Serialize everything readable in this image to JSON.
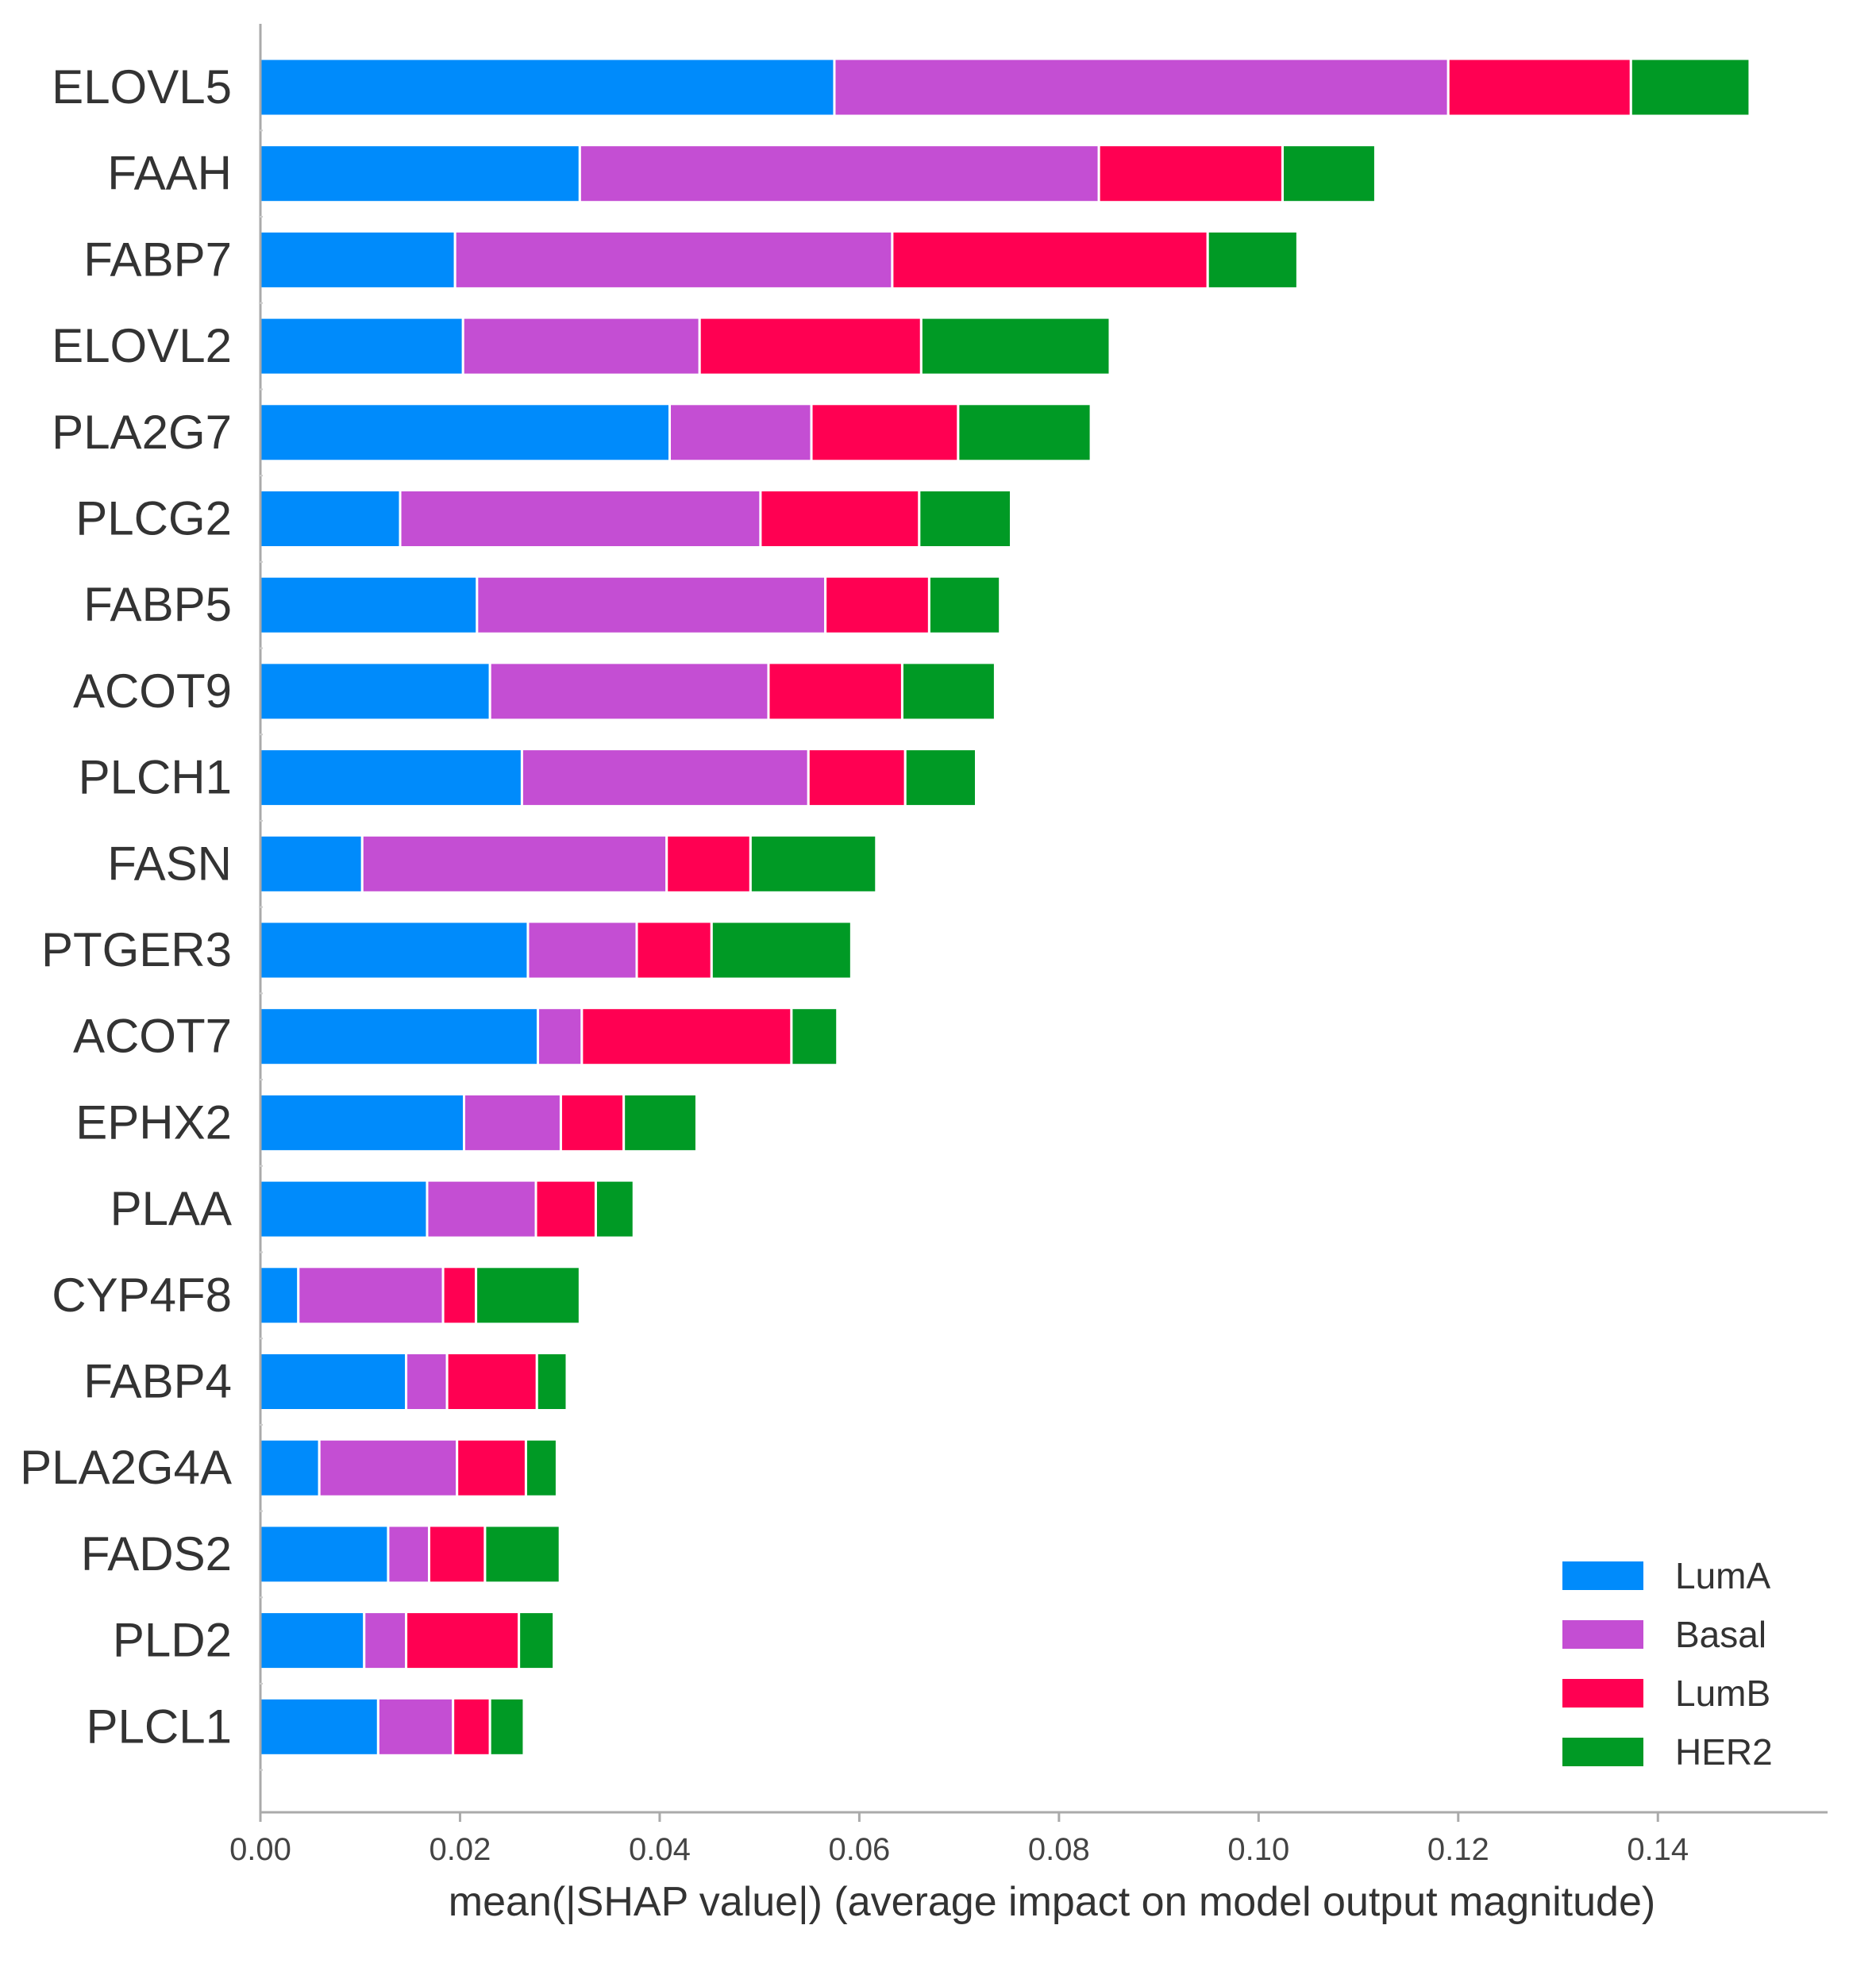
{
  "chart_data": {
    "type": "bar",
    "orientation": "horizontal",
    "stacked": true,
    "title": "",
    "xlabel": "mean(|SHAP value|) (average impact on model output magnitude)",
    "ylabel": "",
    "xlim": [
      0,
      0.157
    ],
    "xticks": [
      0.0,
      0.02,
      0.04,
      0.06,
      0.08,
      0.1,
      0.12,
      0.14
    ],
    "xtick_labels": [
      "0.00",
      "0.02",
      "0.04",
      "0.06",
      "0.08",
      "0.10",
      "0.12",
      "0.14"
    ],
    "grid": false,
    "legend_position": "bottom-right",
    "categories": [
      "ELOVL5",
      "FAAH",
      "FABP7",
      "ELOVL2",
      "PLA2G7",
      "PLCG2",
      "FABP5",
      "ACOT9",
      "PLCH1",
      "FASN",
      "PTGER3",
      "ACOT7",
      "EPHX2",
      "PLAA",
      "CYP4F8",
      "FABP4",
      "PLA2G4A",
      "FADS2",
      "PLD2",
      "PLCL1"
    ],
    "series": [
      {
        "name": "LumA",
        "color": "#008bfb",
        "values": [
          0.0575,
          0.032,
          0.0195,
          0.0203,
          0.041,
          0.014,
          0.0217,
          0.023,
          0.0262,
          0.0102,
          0.0268,
          0.0278,
          0.0204,
          0.0167,
          0.0038,
          0.0146,
          0.0059,
          0.0128,
          0.0104,
          0.0118
        ]
      },
      {
        "name": "Basal",
        "color": "#c44ed3",
        "values": [
          0.0615,
          0.052,
          0.0438,
          0.0237,
          0.0142,
          0.0361,
          0.0349,
          0.0279,
          0.0287,
          0.0305,
          0.0109,
          0.0044,
          0.0097,
          0.0109,
          0.0145,
          0.0041,
          0.0138,
          0.0041,
          0.0042,
          0.0075
        ]
      },
      {
        "name": "LumB",
        "color": "#ff0052",
        "values": [
          0.0183,
          0.0184,
          0.0316,
          0.0222,
          0.0147,
          0.0159,
          0.0104,
          0.0134,
          0.0097,
          0.0084,
          0.0075,
          0.021,
          0.0063,
          0.006,
          0.0033,
          0.009,
          0.0069,
          0.0056,
          0.0113,
          0.0037
        ]
      },
      {
        "name": "HER2",
        "color": "#009a25",
        "values": [
          0.0119,
          0.0093,
          0.009,
          0.0189,
          0.0133,
          0.0092,
          0.0071,
          0.0093,
          0.0071,
          0.0126,
          0.014,
          0.0046,
          0.0073,
          0.0038,
          0.0104,
          0.003,
          0.0031,
          0.0075,
          0.0035,
          0.0034
        ]
      }
    ]
  }
}
